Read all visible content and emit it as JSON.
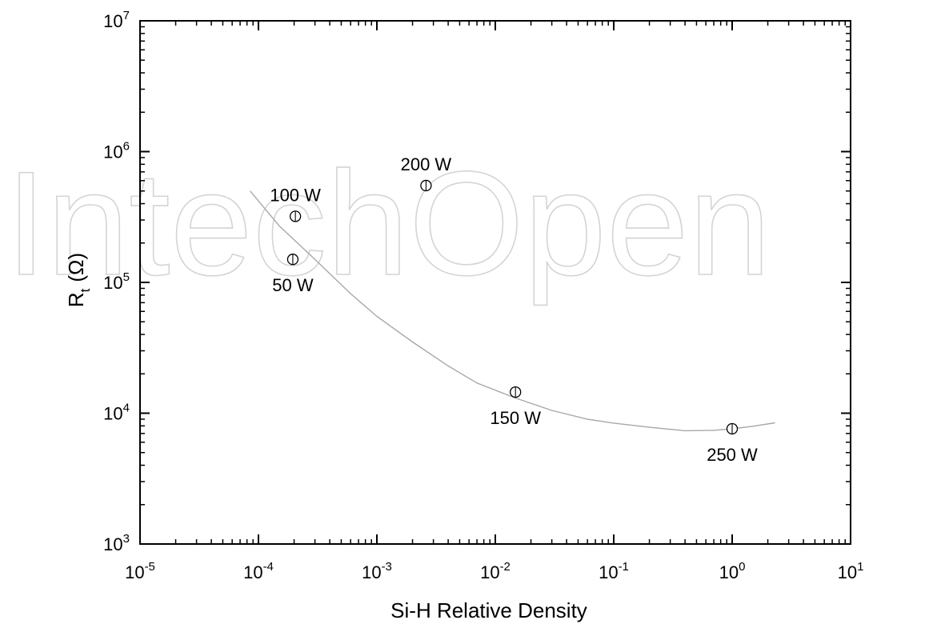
{
  "watermark": "IntechOpen",
  "chart_data": {
    "type": "scatter",
    "title": "",
    "xlabel": "Si-H Relative Density",
    "ylabel_main": "R",
    "ylabel_sub": "t",
    "ylabel_unit": "(Ω)",
    "xscale": "log",
    "yscale": "log",
    "xlim": [
      1e-05,
      10
    ],
    "ylim": [
      1000,
      10000000
    ],
    "x_ticks": [
      {
        "base": "10",
        "exp": "-5",
        "value": 1e-05
      },
      {
        "base": "10",
        "exp": "-4",
        "value": 0.0001
      },
      {
        "base": "10",
        "exp": "-3",
        "value": 0.001
      },
      {
        "base": "10",
        "exp": "-2",
        "value": 0.01
      },
      {
        "base": "10",
        "exp": "-1",
        "value": 0.1
      },
      {
        "base": "10",
        "exp": "0",
        "value": 1
      },
      {
        "base": "10",
        "exp": "1",
        "value": 10
      }
    ],
    "y_ticks": [
      {
        "base": "10",
        "exp": "3",
        "value": 1000
      },
      {
        "base": "10",
        "exp": "4",
        "value": 10000
      },
      {
        "base": "10",
        "exp": "5",
        "value": 100000
      },
      {
        "base": "10",
        "exp": "6",
        "value": 1000000
      },
      {
        "base": "10",
        "exp": "7",
        "value": 10000000
      }
    ],
    "points": [
      {
        "label": "50 W",
        "x": 0.000195,
        "y": 150000,
        "label_pos": "below"
      },
      {
        "label": "100 W",
        "x": 0.000205,
        "y": 320000,
        "label_pos": "above"
      },
      {
        "label": "200 W",
        "x": 0.0026,
        "y": 550000,
        "label_pos": "above"
      },
      {
        "label": "150 W",
        "x": 0.0148,
        "y": 14500,
        "label_pos": "below"
      },
      {
        "label": "250 W",
        "x": 1.0,
        "y": 7600,
        "label_pos": "below"
      }
    ],
    "fit_curve": {
      "color": "#a8a8a8",
      "x": [
        8.5e-05,
        0.00015,
        0.0003,
        0.0006,
        0.001,
        0.002,
        0.004,
        0.007,
        0.015,
        0.03,
        0.06,
        0.1,
        0.2,
        0.4,
        0.7,
        1.0,
        1.5,
        2.3
      ],
      "y": [
        500000,
        270000,
        150000,
        82000,
        55000,
        35000,
        23000,
        17000,
        13000,
        10500,
        9000,
        8400,
        7800,
        7350,
        7400,
        7600,
        7950,
        8450
      ]
    },
    "grid": false,
    "legend": "none"
  }
}
